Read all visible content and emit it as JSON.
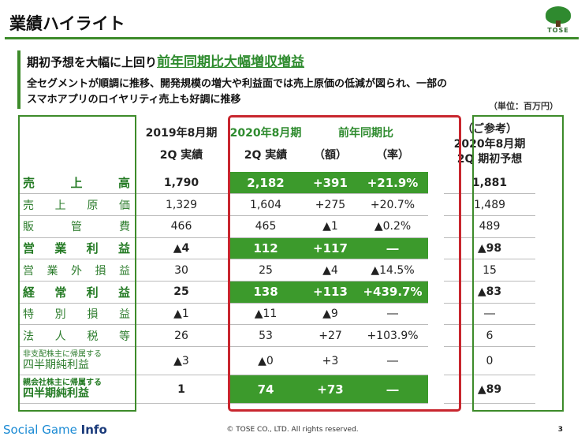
{
  "title": "業績ハイライト",
  "logo_text": "TOSE",
  "headline": {
    "prefix": "期初予想を大幅に上回り",
    "accent": "前年同期比大幅増収増益"
  },
  "description": [
    "全セグメントが順調に推移、開発規模の増大や利益面では売上原価の低減が図られ、一部の",
    "スマホアプリのロイヤリティ売上も好調に推移"
  ],
  "unit": "（単位：百万円）",
  "columns": {
    "y2019_line1": "2019年8月期",
    "y2019_line2": "2Q 実績",
    "y2020_line1": "2020年8月期",
    "y2020_line2": "2Q 実績",
    "yoy_title": "前年同期比",
    "yoy_amount": "（額）",
    "yoy_rate": "（率）",
    "plan_line1": "（ご参考）",
    "plan_line2": "2020年8月期",
    "plan_line3": "2Q 期初予想"
  },
  "rows": [
    {
      "label_chars": [
        "売",
        "上",
        "高"
      ],
      "y2019": "1,790",
      "y2020": "2,182",
      "diff": "+391",
      "rate": "+21.9%",
      "plan": "1,881",
      "highlight": true
    },
    {
      "label_chars": [
        "売",
        "上",
        "原",
        "価"
      ],
      "y2019": "1,329",
      "y2020": "1,604",
      "diff": "+275",
      "rate": "+20.7%",
      "plan": "1,489",
      "highlight": false
    },
    {
      "label_chars": [
        "販",
        "管",
        "費"
      ],
      "y2019": "466",
      "y2020": "465",
      "diff": "▲1",
      "rate": "▲0.2%",
      "plan": "489",
      "highlight": false
    },
    {
      "label_chars": [
        "営",
        "業",
        "利",
        "益"
      ],
      "y2019": "▲4",
      "y2020": "112",
      "diff": "+117",
      "rate": "―",
      "plan": "▲98",
      "highlight": true
    },
    {
      "label_chars": [
        "営",
        "業",
        "外",
        "損",
        "益"
      ],
      "y2019": "30",
      "y2020": "25",
      "diff": "▲4",
      "rate": "▲14.5%",
      "plan": "15",
      "highlight": false
    },
    {
      "label_chars": [
        "経",
        "常",
        "利",
        "益"
      ],
      "y2019": "25",
      "y2020": "138",
      "diff": "+113",
      "rate": "+439.7%",
      "plan": "▲83",
      "highlight": true
    },
    {
      "label_chars": [
        "特",
        "別",
        "損",
        "益"
      ],
      "y2019": "▲1",
      "y2020": "▲11",
      "diff": "▲9",
      "rate": "―",
      "plan": "―",
      "highlight": false
    },
    {
      "label_chars": [
        "法",
        "人",
        "税",
        "等"
      ],
      "y2019": "26",
      "y2020": "53",
      "diff": "+27",
      "rate": "+103.9%",
      "plan": "6",
      "highlight": false
    },
    {
      "label_small": "非支配株主に帰属する",
      "label_big": "四半期純利益",
      "y2019": "▲3",
      "y2020": "▲0",
      "diff": "+3",
      "rate": "―",
      "plan": "0",
      "highlight": false
    },
    {
      "label_small": "親会社株主に帰属する",
      "label_big": "四半期純利益",
      "y2019": "1",
      "y2020": "74",
      "diff": "+73",
      "rate": "―",
      "plan": "▲89",
      "highlight": true
    }
  ],
  "footer": {
    "brand_a": "Social Game ",
    "brand_b": "Info",
    "copyright": "© TOSE CO., LTD. All rights reserved.",
    "page": "3"
  },
  "colors": {
    "accent_green": "#3c9a2c",
    "frame_red": "#c8262e"
  }
}
